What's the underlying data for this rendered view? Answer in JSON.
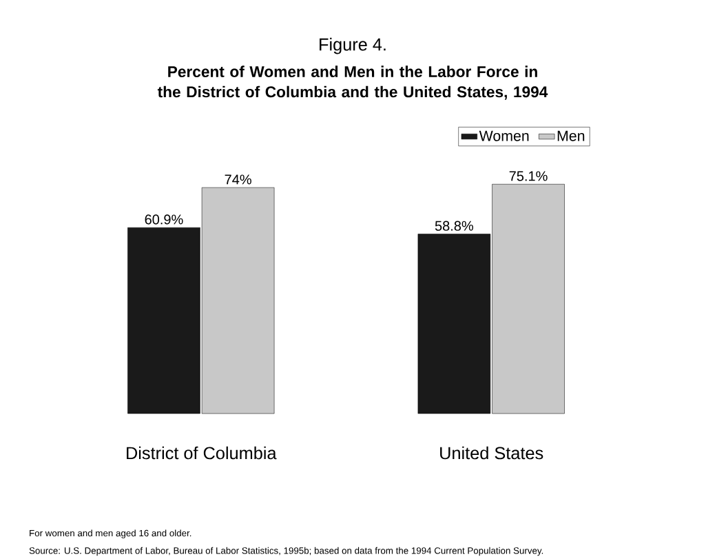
{
  "chart_data": {
    "type": "bar",
    "title": "Figure 4.",
    "subtitle": "**Percent of Women and Men in the Labor Force in the District of Columbia and the United States, 1994**",
    "categories": [
      "District of Columbia",
      "United States"
    ],
    "series": [
      {
        "name": "Women",
        "color": "#1a1a1a",
        "values": [
          60.9,
          58.8
        ],
        "value_labels": [
          "60.9%",
          "58.8%"
        ]
      },
      {
        "name": "Men",
        "color": "#c8c8c8",
        "values": [
          74,
          75.1
        ],
        "value_labels": [
          "74%",
          "75.1%"
        ]
      }
    ],
    "legend": "top right",
    "annotations": [
      "For women and men aged 16 and older.",
      "Source:  U.S. Department of Labor, Bureau of Labor Statistics, 1995b; based on data from the 1994 Current Population Survey."
    ]
  }
}
